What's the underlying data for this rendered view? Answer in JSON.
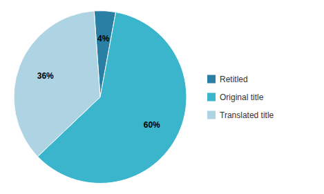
{
  "chart_data": {
    "type": "pie",
    "categories": [
      "Retitled",
      "Original title",
      "Translated title"
    ],
    "values": [
      4,
      60,
      36
    ],
    "value_labels": [
      "4%",
      "60%",
      "36%"
    ],
    "colors": [
      "#2a7fa5",
      "#3ab5cc",
      "#aed4e4"
    ],
    "data_labels": true,
    "legend": "right"
  }
}
